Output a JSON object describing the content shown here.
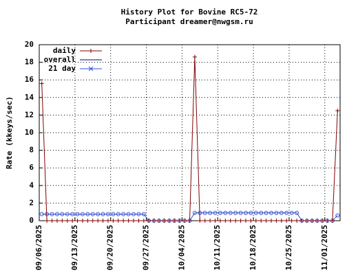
{
  "chart_data": {
    "type": "line",
    "title": "History Plot for Bovine RC5-72",
    "subtitle": "Participant dreamer@nwgsm.ru",
    "y_label": "Rate (kkeys/sec)",
    "x": [
      "09/06/2025",
      "09/07/2025",
      "09/08/2025",
      "09/09/2025",
      "09/10/2025",
      "09/11/2025",
      "09/12/2025",
      "09/13/2025",
      "09/14/2025",
      "09/15/2025",
      "09/16/2025",
      "09/17/2025",
      "09/18/2025",
      "09/19/2025",
      "09/20/2025",
      "09/21/2025",
      "09/22/2025",
      "09/23/2025",
      "09/24/2025",
      "09/25/2025",
      "09/26/2025",
      "09/27/2025",
      "09/28/2025",
      "09/29/2025",
      "09/30/2025",
      "10/01/2025",
      "10/02/2025",
      "10/03/2025",
      "10/04/2025",
      "10/05/2025",
      "10/06/2025",
      "10/07/2025",
      "10/08/2025",
      "10/09/2025",
      "10/10/2025",
      "10/11/2025",
      "10/12/2025",
      "10/13/2025",
      "10/14/2025",
      "10/15/2025",
      "10/16/2025",
      "10/17/2025",
      "10/18/2025",
      "10/19/2025",
      "10/20/2025",
      "10/21/2025",
      "10/22/2025",
      "10/23/2025",
      "10/24/2025",
      "10/25/2025",
      "10/26/2025",
      "10/27/2025",
      "10/28/2025",
      "10/29/2025",
      "10/30/2025",
      "10/31/2025",
      "11/01/2025",
      "11/02/2025",
      "11/03/2025"
    ],
    "series": [
      {
        "name": "daily",
        "color": "#800000",
        "values": [
          15.6,
          0,
          0,
          0,
          0,
          0,
          0,
          0,
          0,
          0,
          0,
          0,
          0,
          0,
          0,
          0,
          0,
          0,
          0,
          0,
          0,
          0,
          0,
          0,
          0,
          0,
          0,
          0,
          0,
          0,
          18.6,
          0,
          0,
          0,
          0,
          0,
          0,
          0,
          0,
          0,
          0,
          0,
          0,
          0,
          0,
          0,
          0,
          0,
          0,
          0,
          0,
          0,
          0,
          0,
          0,
          0,
          0,
          0,
          12.5
        ]
      },
      {
        "name": "overall",
        "color": "#000080"
      },
      {
        "name": "21 day",
        "color": "#3050d0",
        "values": [
          0.74,
          0.74,
          0.74,
          0.74,
          0.74,
          0.74,
          0.74,
          0.74,
          0.74,
          0.74,
          0.74,
          0.74,
          0.74,
          0.74,
          0.74,
          0.74,
          0.74,
          0.74,
          0.74,
          0.74,
          0.74,
          0,
          0,
          0,
          0,
          0,
          0,
          0,
          0,
          0,
          0.89,
          0.89,
          0.89,
          0.89,
          0.89,
          0.89,
          0.89,
          0.89,
          0.89,
          0.89,
          0.89,
          0.89,
          0.89,
          0.89,
          0.89,
          0.89,
          0.89,
          0.89,
          0.89,
          0.89,
          0.89,
          0,
          0,
          0,
          0,
          0,
          0,
          0,
          0.6
        ]
      }
    ],
    "xlim": [
      "09/06/2025",
      "11/04/2025"
    ],
    "xticks": [
      "09/06/2025",
      "09/13/2025",
      "09/20/2025",
      "09/27/2025",
      "10/04/2025",
      "10/11/2025",
      "10/18/2025",
      "10/25/2025",
      "11/01/2025"
    ],
    "ylim": [
      0,
      20
    ],
    "yticks": [
      0,
      2,
      4,
      6,
      8,
      10,
      12,
      14,
      16,
      18,
      20
    ],
    "grid": true,
    "legend": "upper-left"
  }
}
